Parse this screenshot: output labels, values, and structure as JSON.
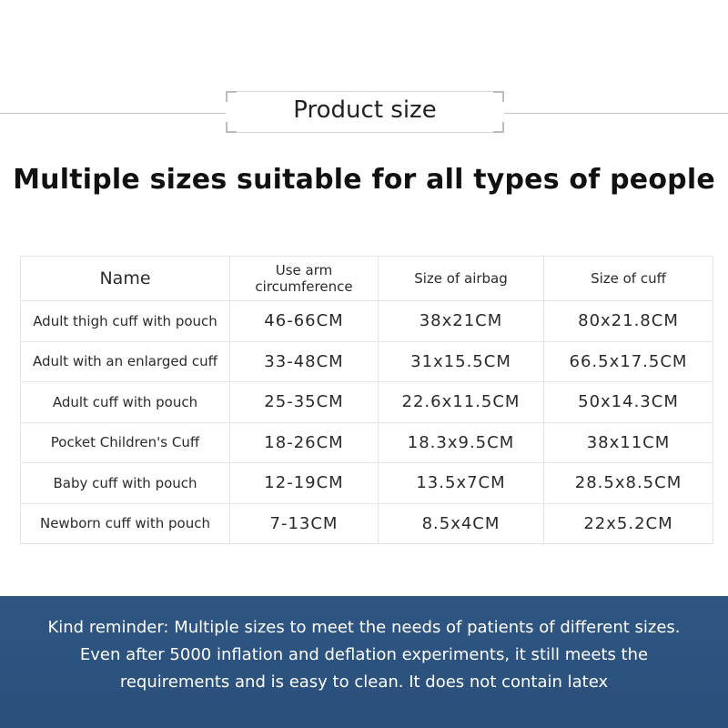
{
  "header": {
    "title": "Product size",
    "headline": "Multiple sizes suitable for all types of people"
  },
  "table": {
    "columns": [
      "Name",
      "Use arm circumference",
      "Size of airbag",
      "Size of cuff"
    ],
    "rows": [
      {
        "name": "Adult thigh cuff with pouch",
        "arm": "46-66CM",
        "airbag": "38x21CM",
        "cuff": "80x21.8CM"
      },
      {
        "name": "Adult with an enlarged cuff",
        "arm": "33-48CM",
        "airbag": "31x15.5CM",
        "cuff": "66.5x17.5CM"
      },
      {
        "name": "Adult cuff with pouch",
        "arm": "25-35CM",
        "airbag": "22.6x11.5CM",
        "cuff": "50x14.3CM"
      },
      {
        "name": "Pocket Children's Cuff",
        "arm": "18-26CM",
        "airbag": "18.3x9.5CM",
        "cuff": "38x11CM"
      },
      {
        "name": "Baby cuff with pouch",
        "arm": "12-19CM",
        "airbag": "13.5x7CM",
        "cuff": "28.5x8.5CM"
      },
      {
        "name": "Newborn cuff with pouch",
        "arm": "7-13CM",
        "airbag": "8.5x4CM",
        "cuff": "22x5.2CM"
      }
    ]
  },
  "footer": {
    "lines": [
      "Kind reminder: Multiple sizes to meet the needs of patients of different sizes.",
      "Even after 5000 inflation and deflation experiments, it still meets the",
      "requirements and is easy to clean. It does not contain latex"
    ]
  },
  "colors": {
    "banner": "#2f5683",
    "divider": "#c4c4c4",
    "text": "#222222"
  }
}
